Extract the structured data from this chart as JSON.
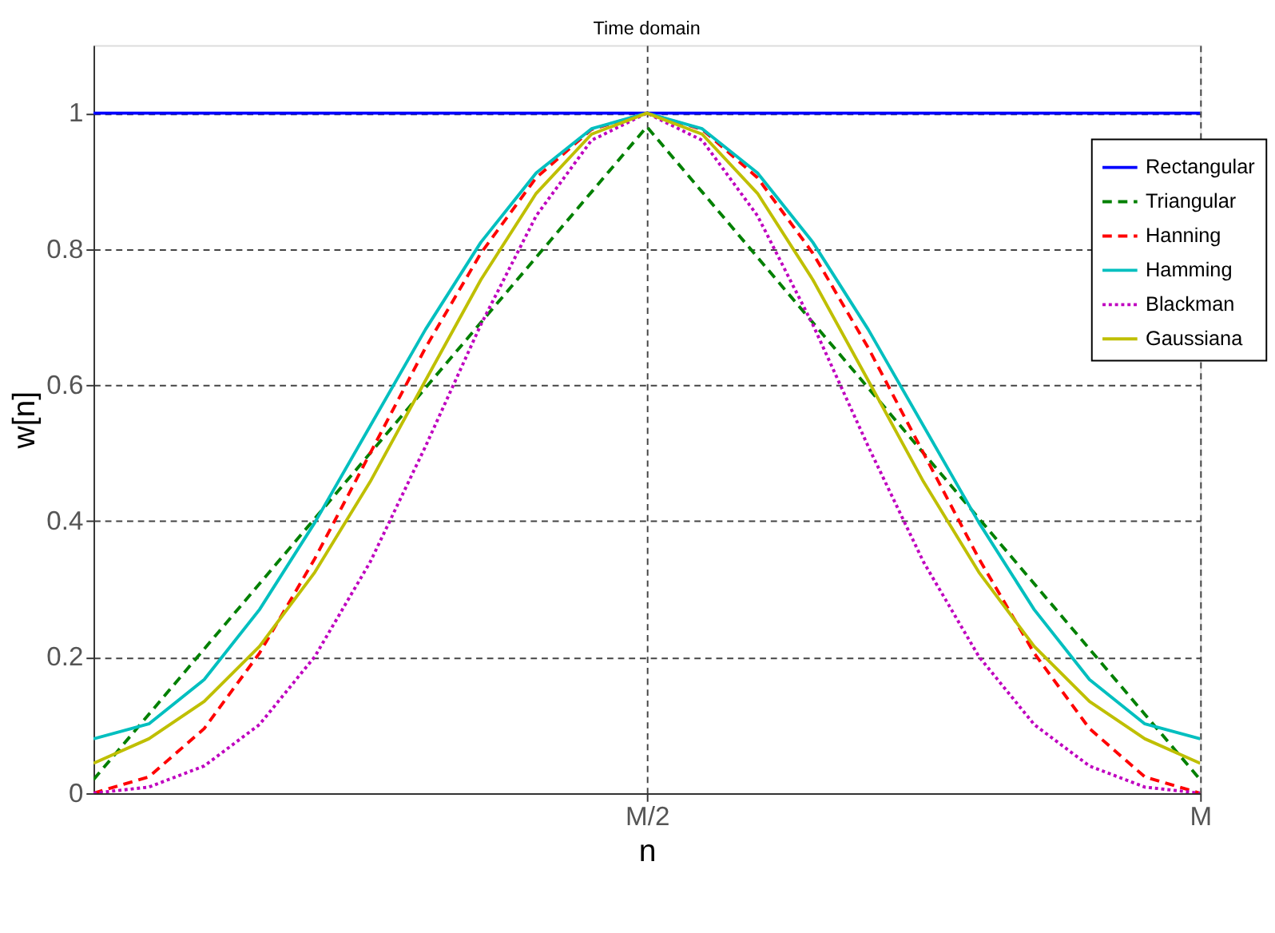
{
  "chart_data": {
    "type": "line",
    "title": "Time domain",
    "xlabel": "n",
    "ylabel": "w[n]",
    "categories": [
      null,
      null,
      null,
      null,
      null,
      null,
      null,
      null,
      null,
      null,
      "M/2",
      null,
      null,
      null,
      null,
      null,
      null,
      null,
      null,
      null,
      "M"
    ],
    "ylim": [
      0,
      1.1
    ],
    "yticks": [
      0,
      0.2,
      0.4,
      0.6,
      0.8,
      1
    ],
    "grid": true,
    "legend": "top right",
    "marker": "none",
    "series": [
      {
        "name": "Rectangular",
        "color": "#0000ff",
        "line_style": "solid",
        "values": [
          1,
          1,
          1,
          1,
          1,
          1,
          1,
          1,
          1,
          1,
          1,
          1,
          1,
          1,
          1,
          1,
          1,
          1,
          1,
          1,
          1
        ]
      },
      {
        "name": "Triangular",
        "color": "#008000",
        "line_style": "dashed",
        "values": [
          0.02,
          0.116,
          0.212,
          0.308,
          0.404,
          0.5,
          0.596,
          0.692,
          0.788,
          0.884,
          0.98,
          0.884,
          0.788,
          0.692,
          0.596,
          0.5,
          0.404,
          0.308,
          0.212,
          0.116,
          0.02
        ]
      },
      {
        "name": "Hanning",
        "color": "#ff0000",
        "line_style": "dashed",
        "values": [
          0,
          0.024,
          0.095,
          0.206,
          0.345,
          0.5,
          0.655,
          0.794,
          0.905,
          0.976,
          1,
          0.976,
          0.905,
          0.794,
          0.655,
          0.5,
          0.345,
          0.206,
          0.095,
          0.024,
          0
        ]
      },
      {
        "name": "Hamming",
        "color": "#00bfbf",
        "line_style": "solid",
        "values": [
          0.08,
          0.102,
          0.167,
          0.27,
          0.398,
          0.54,
          0.682,
          0.81,
          0.912,
          0.977,
          1,
          0.977,
          0.912,
          0.81,
          0.682,
          0.54,
          0.398,
          0.27,
          0.167,
          0.102,
          0.08
        ]
      },
      {
        "name": "Blackman",
        "color": "#bf00bf",
        "line_style": "dotted",
        "values": [
          0,
          0.009,
          0.04,
          0.101,
          0.201,
          0.34,
          0.51,
          0.689,
          0.849,
          0.96,
          1,
          0.96,
          0.849,
          0.689,
          0.51,
          0.34,
          0.201,
          0.101,
          0.04,
          0.009,
          0
        ]
      },
      {
        "name": "Gaussiana",
        "color": "#bfbf00",
        "line_style": "solid",
        "values": [
          0.044,
          0.08,
          0.135,
          0.216,
          0.325,
          0.458,
          0.607,
          0.755,
          0.882,
          0.969,
          1,
          0.969,
          0.882,
          0.755,
          0.607,
          0.458,
          0.325,
          0.216,
          0.135,
          0.08,
          0.044
        ]
      }
    ]
  }
}
